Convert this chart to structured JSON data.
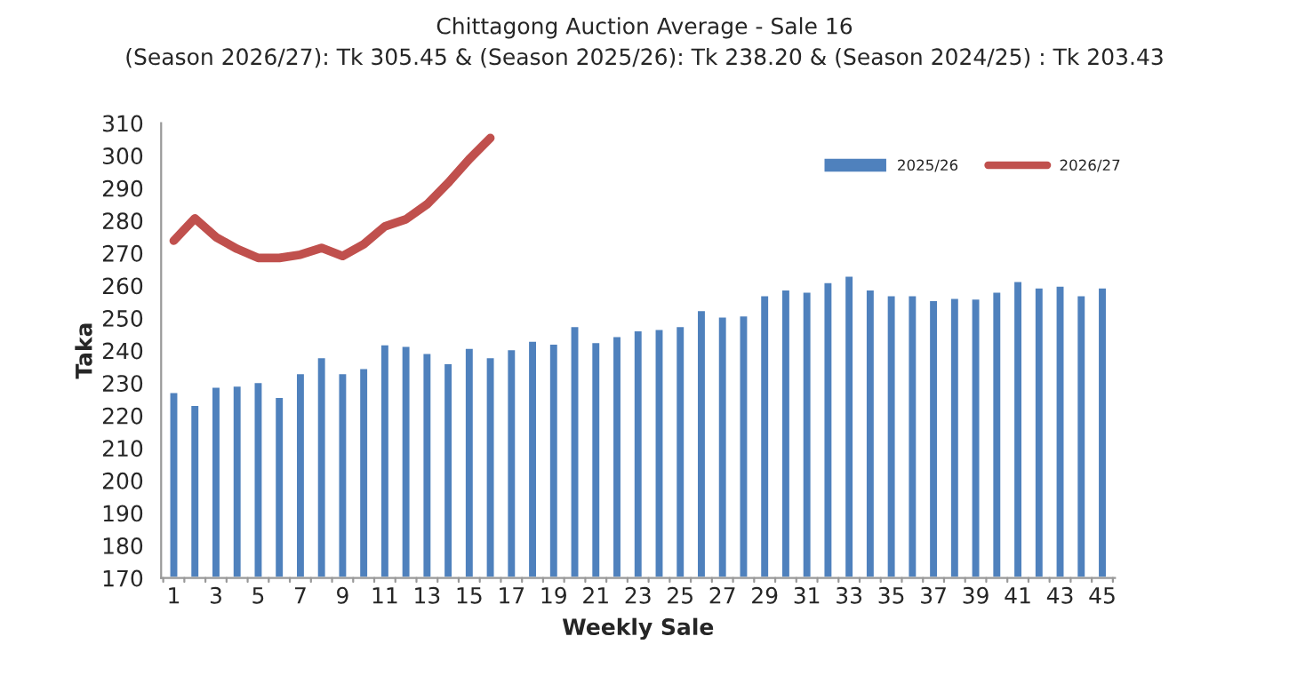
{
  "chart_data": {
    "type": "bar",
    "title": "Chittagong Auction Average - Sale 16",
    "subtitle": "(Season 2026/27): Tk 305.45 & (Season 2025/26): Tk 238.20 & (Season 2024/25) : Tk 203.43",
    "xlabel": "Weekly Sale",
    "ylabel": "Taka",
    "categories": [
      "1",
      null,
      "3",
      null,
      "5",
      null,
      "7",
      null,
      "9",
      null,
      "11",
      null,
      "13",
      null,
      "15",
      null,
      "17",
      null,
      "19",
      null,
      "21",
      null,
      "23",
      null,
      "25",
      null,
      "27",
      null,
      "29",
      null,
      "31",
      null,
      "33",
      null,
      "35",
      null,
      "37",
      null,
      "39",
      null,
      "41",
      null,
      "43",
      null,
      "45"
    ],
    "series": [
      {
        "name": "2025/26",
        "color": "#4f81bd",
        "values": [
          227.3,
          223.3,
          228.9,
          229.3,
          230.4,
          225.8,
          233.1,
          238,
          233.1,
          234.7,
          242,
          241.5,
          239.3,
          236.2,
          240.9,
          238,
          240.5,
          243.1,
          242.2,
          247.6,
          242.7,
          244.5,
          246.3,
          246.7,
          247.6,
          252.5,
          250.5,
          250.9,
          257.1,
          258.9,
          258.2,
          261.1,
          263.1,
          258.9,
          257.1,
          257.1,
          255.6,
          256.3,
          256.1,
          258.2,
          261.5,
          259.5,
          260,
          257.1,
          259.5
        ]
      },
      {
        "name": "2026/27",
        "type": "line",
        "color": "#c0504d",
        "values": [
          273.8,
          280.7,
          274.9,
          271.3,
          268.5,
          268.5,
          269.5,
          271.6,
          269.1,
          272.7,
          278.2,
          280.4,
          285,
          291.6,
          298.9,
          305.4,
          null,
          null,
          null,
          null,
          null,
          null,
          null,
          null,
          null,
          null,
          null,
          null,
          null,
          null,
          null,
          null,
          null,
          null,
          null,
          null,
          null,
          null,
          null,
          null,
          null,
          null,
          null,
          null,
          null
        ]
      }
    ],
    "ylim": [
      170,
      310
    ],
    "yticks": [
      170,
      180,
      190,
      200,
      210,
      220,
      230,
      240,
      250,
      260,
      270,
      280,
      290,
      300,
      310
    ],
    "grid": false,
    "legend": "top right"
  }
}
